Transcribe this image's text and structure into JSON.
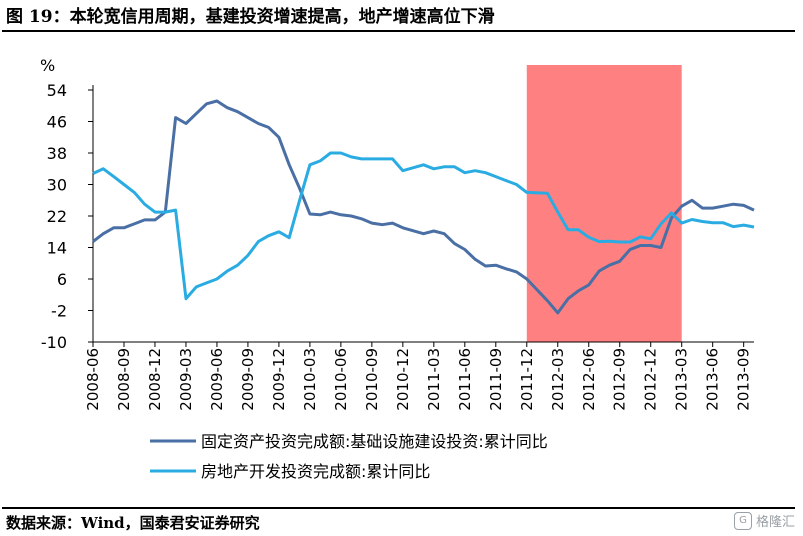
{
  "title": "图 19：本轮宽信用周期，基建投资增速提高，地产增速高位下滑",
  "source": "数据来源：Wind，国泰君安证券研究",
  "watermark": {
    "text": "格隆汇",
    "icon": "logo-icon"
  },
  "colors": {
    "series1": "#4a6fa5",
    "series2": "#2aace2",
    "highlight": "#ff8080"
  },
  "chart_data": {
    "type": "line",
    "ylabel": "%",
    "ylim": [
      -10,
      54
    ],
    "yticks": [
      54,
      46,
      38,
      30,
      22,
      14,
      6,
      -2,
      -10
    ],
    "grid": false,
    "legend_position": "bottom",
    "x_start": "2008-06",
    "x_end": "2013-10",
    "xticks": [
      "2008-06",
      "2008-09",
      "2008-12",
      "2009-03",
      "2009-06",
      "2009-09",
      "2009-12",
      "2010-03",
      "2010-06",
      "2010-09",
      "2010-12",
      "2011-03",
      "2011-06",
      "2011-09",
      "2011-12",
      "2012-03",
      "2012-06",
      "2012-09",
      "2012-12",
      "2013-03",
      "2013-06",
      "2013-09"
    ],
    "highlight_range": [
      "2011-12",
      "2013-03"
    ],
    "series": [
      {
        "name": "固定资产投资完成额:基础设施建设投资:累计同比",
        "points": [
          [
            "2008-06",
            15.5
          ],
          [
            "2008-07",
            17.5
          ],
          [
            "2008-08",
            19
          ],
          [
            "2008-09",
            19
          ],
          [
            "2008-10",
            20
          ],
          [
            "2008-11",
            21
          ],
          [
            "2008-12",
            21
          ],
          [
            "2009-01",
            23
          ],
          [
            "2009-02",
            47
          ],
          [
            "2009-03",
            45.5
          ],
          [
            "2009-04",
            48
          ],
          [
            "2009-05",
            50.5
          ],
          [
            "2009-06",
            51.2
          ],
          [
            "2009-07",
            49.5
          ],
          [
            "2009-08",
            48.5
          ],
          [
            "2009-09",
            47
          ],
          [
            "2009-10",
            45.5
          ],
          [
            "2009-11",
            44.5
          ],
          [
            "2009-12",
            42
          ],
          [
            "2010-01",
            35
          ],
          [
            "2010-02",
            29
          ],
          [
            "2010-03",
            22.5
          ],
          [
            "2010-04",
            22.3
          ],
          [
            "2010-05",
            23
          ],
          [
            "2010-06",
            22.3
          ],
          [
            "2010-07",
            22
          ],
          [
            "2010-08",
            21.3
          ],
          [
            "2010-09",
            20.2
          ],
          [
            "2010-10",
            19.8
          ],
          [
            "2010-11",
            20.2
          ],
          [
            "2010-12",
            19
          ],
          [
            "2011-02",
            17.5
          ],
          [
            "2011-03",
            18.2
          ],
          [
            "2011-04",
            17.5
          ],
          [
            "2011-05",
            15
          ],
          [
            "2011-06",
            13.5
          ],
          [
            "2011-07",
            11
          ],
          [
            "2011-08",
            9.3
          ],
          [
            "2011-09",
            9.5
          ],
          [
            "2011-10",
            8.6
          ],
          [
            "2011-11",
            7.8
          ],
          [
            "2011-12",
            6
          ],
          [
            "2012-02",
            0.5
          ],
          [
            "2012-03",
            -2.6
          ],
          [
            "2012-04",
            1
          ],
          [
            "2012-05",
            3
          ],
          [
            "2012-06",
            4.5
          ],
          [
            "2012-07",
            8
          ],
          [
            "2012-08",
            9.5
          ],
          [
            "2012-09",
            10.5
          ],
          [
            "2012-10",
            13.5
          ],
          [
            "2012-11",
            14.5
          ],
          [
            "2012-12",
            14.5
          ],
          [
            "2013-01",
            14
          ],
          [
            "2013-02",
            21.5
          ],
          [
            "2013-03",
            24.5
          ],
          [
            "2013-04",
            26
          ],
          [
            "2013-05",
            24
          ],
          [
            "2013-06",
            24
          ],
          [
            "2013-07",
            24.5
          ],
          [
            "2013-08",
            25
          ],
          [
            "2013-09",
            24.7
          ],
          [
            "2013-10",
            23.5
          ]
        ]
      },
      {
        "name": "房地产开发投资完成额:累计同比",
        "points": [
          [
            "2008-06",
            32.8
          ],
          [
            "2008-07",
            34
          ],
          [
            "2008-08",
            32
          ],
          [
            "2008-09",
            30
          ],
          [
            "2008-10",
            28
          ],
          [
            "2008-11",
            25
          ],
          [
            "2008-12",
            23
          ],
          [
            "2009-01",
            23
          ],
          [
            "2009-02",
            23.5
          ],
          [
            "2009-03",
            1
          ],
          [
            "2009-04",
            4
          ],
          [
            "2009-05",
            5
          ],
          [
            "2009-06",
            6
          ],
          [
            "2009-07",
            8
          ],
          [
            "2009-08",
            9.5
          ],
          [
            "2009-09",
            12
          ],
          [
            "2009-10",
            15.5
          ],
          [
            "2009-11",
            17
          ],
          [
            "2009-12",
            18
          ],
          [
            "2010-01",
            16.5
          ],
          [
            "2010-02",
            26
          ],
          [
            "2010-03",
            35
          ],
          [
            "2010-04",
            36
          ],
          [
            "2010-05",
            38
          ],
          [
            "2010-06",
            38
          ],
          [
            "2010-07",
            37
          ],
          [
            "2010-08",
            36.5
          ],
          [
            "2010-09",
            36.5
          ],
          [
            "2010-10",
            36.5
          ],
          [
            "2010-11",
            36.5
          ],
          [
            "2010-12",
            33.5
          ],
          [
            "2011-02",
            35
          ],
          [
            "2011-03",
            34
          ],
          [
            "2011-04",
            34.5
          ],
          [
            "2011-05",
            34.5
          ],
          [
            "2011-06",
            33
          ],
          [
            "2011-07",
            33.5
          ],
          [
            "2011-08",
            33
          ],
          [
            "2011-09",
            32
          ],
          [
            "2011-10",
            31
          ],
          [
            "2011-11",
            30
          ],
          [
            "2011-12",
            28
          ],
          [
            "2012-02",
            27.8
          ],
          [
            "2012-03",
            23
          ],
          [
            "2012-04",
            18.5
          ],
          [
            "2012-05",
            18.5
          ],
          [
            "2012-06",
            16.6
          ],
          [
            "2012-07",
            15.5
          ],
          [
            "2012-08",
            15.6
          ],
          [
            "2012-09",
            15.4
          ],
          [
            "2012-10",
            15.4
          ],
          [
            "2012-11",
            16.7
          ],
          [
            "2012-12",
            16.2
          ],
          [
            "2013-01",
            20
          ],
          [
            "2013-02",
            22.8
          ],
          [
            "2013-03",
            20.2
          ],
          [
            "2013-04",
            21.1
          ],
          [
            "2013-05",
            20.6
          ],
          [
            "2013-06",
            20.3
          ],
          [
            "2013-07",
            20.3
          ],
          [
            "2013-08",
            19.3
          ],
          [
            "2013-09",
            19.7
          ],
          [
            "2013-10",
            19.2
          ]
        ]
      }
    ]
  }
}
